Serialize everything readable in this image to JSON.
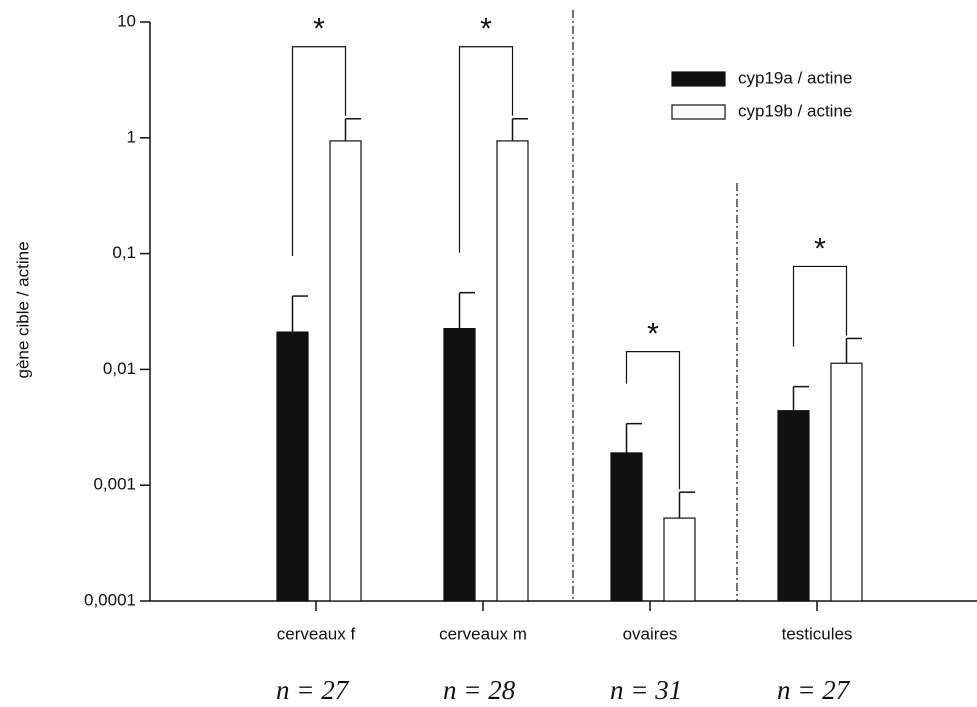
{
  "chart_data": {
    "type": "bar",
    "log_scale": true,
    "ylabel": "gène cible / actine",
    "categories": [
      "cerveaux f",
      "cerveaux m",
      "ovaires",
      "testicules"
    ],
    "series": [
      {
        "name": "cyp19a / actine",
        "color": "#111111",
        "values": [
          0.021,
          0.0225,
          0.0019,
          0.0044
        ],
        "errors": [
          0.022,
          0.0235,
          0.0015,
          0.0027
        ]
      },
      {
        "name": "cyp19b / actine",
        "color": "#ffffff",
        "values": [
          0.94,
          0.94,
          0.00052,
          0.0113
        ],
        "errors": [
          0.52,
          0.52,
          0.00035,
          0.0072
        ]
      }
    ],
    "significance": [
      "*",
      "*",
      "*",
      "*"
    ],
    "sample_sizes": [
      "n = 27",
      "n = 28",
      "n = 31",
      "n = 27"
    ],
    "ylim": [
      0.0001,
      10
    ],
    "yticks": [
      {
        "value": 0.0001,
        "label": "0,0001"
      },
      {
        "value": 0.001,
        "label": "0,001"
      },
      {
        "value": 0.01,
        "label": "0,01"
      },
      {
        "value": 0.1,
        "label": "0,1"
      },
      1,
      10
    ],
    "legend": "upper right"
  }
}
